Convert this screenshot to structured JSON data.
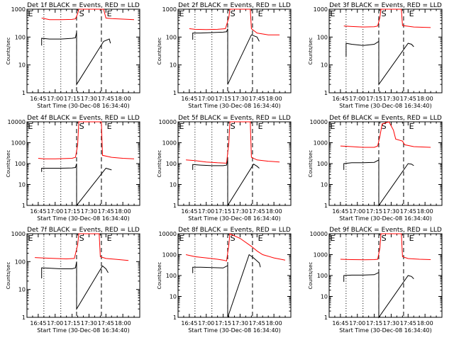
{
  "colors": {
    "events": "#000000",
    "lld": "#ff0000",
    "axes": "#000000"
  },
  "chart_data": [
    {
      "type": "line",
      "title": "Det 1f BLACK = Events, RED = LLD",
      "ylabel": "Counts/sec",
      "xlabel": "Start Time (30-Dec-08 16:34:40)",
      "scale": "log",
      "ylim": [
        1,
        1000
      ],
      "y_ticks": [
        "1",
        "10",
        "100",
        "1000"
      ],
      "x_ticks": [
        "16:45",
        "17:00",
        "17:15",
        "17:30",
        "17:45",
        "18:00"
      ],
      "markers": [
        "E",
        "S",
        "E"
      ],
      "series": [
        {
          "role": "LLD",
          "x": [
            "16:48",
            "16:55",
            "17:05",
            "17:15",
            "17:18",
            "17:20",
            "17:21",
            "17:43",
            "17:45",
            "17:50",
            "18:00",
            "18:10"
          ],
          "y": [
            480,
            420,
            420,
            430,
            450,
            700,
            1000,
            1000,
            480,
            460,
            440,
            420
          ]
        },
        {
          "role": "Events",
          "x": [
            "16:48",
            "16:48",
            "16:55",
            "17:05",
            "17:15",
            "17:18",
            "17:19",
            "17:19",
            "17:43",
            "17:48",
            "17:49"
          ],
          "y": [
            50,
            90,
            85,
            85,
            90,
            95,
            150,
            2,
            70,
            85,
            60
          ]
        }
      ]
    },
    {
      "type": "line",
      "title": "Det 2f BLACK = Events, RED = LLD",
      "ylabel": "Counts/sec",
      "xlabel": "Start Time (30-Dec-08 16:34:40)",
      "scale": "log",
      "ylim": [
        1,
        1000
      ],
      "y_ticks": [
        "1",
        "10",
        "100",
        "1000"
      ],
      "x_ticks": [
        "16:45",
        "17:00",
        "17:15",
        "17:30",
        "17:45",
        "18:00"
      ],
      "markers": [
        "E",
        "S",
        "E"
      ],
      "series": [
        {
          "role": "LLD",
          "x": [
            "16:45",
            "16:50",
            "17:00",
            "17:10",
            "17:17",
            "17:20",
            "17:21",
            "17:39",
            "17:40",
            "17:45",
            "17:55",
            "18:05"
          ],
          "y": [
            200,
            190,
            185,
            190,
            200,
            500,
            1000,
            1000,
            200,
            140,
            120,
            120
          ]
        },
        {
          "role": "Events",
          "x": [
            "16:48",
            "16:48",
            "16:55",
            "17:05",
            "17:15",
            "17:18",
            "17:19",
            "17:19",
            "17:40",
            "17:45",
            "17:47"
          ],
          "y": [
            80,
            140,
            140,
            145,
            150,
            155,
            200,
            2,
            120,
            100,
            70
          ]
        }
      ]
    },
    {
      "type": "line",
      "title": "Det 3f BLACK = Events, RED = LLD",
      "ylabel": "Counts/sec",
      "xlabel": "Start Time (30-Dec-08 16:34:40)",
      "scale": "log",
      "ylim": [
        1,
        1000
      ],
      "y_ticks": [
        "1",
        "10",
        "100",
        "1000"
      ],
      "x_ticks": [
        "16:45",
        "17:00",
        "17:15",
        "17:30",
        "17:45",
        "18:00"
      ],
      "markers": [
        "E",
        "S",
        "E"
      ],
      "series": [
        {
          "role": "LLD",
          "x": [
            "16:48",
            "16:55",
            "17:05",
            "17:15",
            "17:18",
            "17:20",
            "17:21",
            "17:39",
            "17:40",
            "17:50",
            "18:05"
          ],
          "y": [
            250,
            240,
            230,
            235,
            250,
            500,
            1000,
            1000,
            260,
            230,
            220
          ]
        },
        {
          "role": "Events",
          "x": [
            "16:50",
            "16:50",
            "16:55",
            "17:05",
            "17:15",
            "17:19",
            "17:19",
            "17:45",
            "17:48",
            "17:50"
          ],
          "y": [
            20,
            60,
            55,
            50,
            55,
            70,
            2,
            60,
            55,
            45
          ]
        }
      ]
    },
    {
      "type": "line",
      "title": "Det 4f BLACK = Events, RED = LLD",
      "ylabel": "Counts/sec",
      "xlabel": "Start Time (30-Dec-08 16:34:40)",
      "scale": "log",
      "ylim": [
        1,
        10000
      ],
      "y_ticks": [
        "1",
        "10",
        "100",
        "1000",
        "10000"
      ],
      "x_ticks": [
        "16:45",
        "17:00",
        "17:15",
        "17:30",
        "17:45",
        "18:00"
      ],
      "markers": [
        "E",
        "S",
        "E"
      ],
      "series": [
        {
          "role": "LLD",
          "x": [
            "16:45",
            "16:50",
            "17:00",
            "17:10",
            "17:15",
            "17:18",
            "17:20",
            "17:21",
            "17:41",
            "17:42",
            "17:50",
            "18:00",
            "18:10"
          ],
          "y": [
            180,
            170,
            170,
            175,
            180,
            200,
            800,
            10000,
            10000,
            250,
            200,
            180,
            170
          ]
        },
        {
          "role": "Events",
          "x": [
            "16:48",
            "16:48",
            "16:55",
            "17:05",
            "17:15",
            "17:18",
            "17:19",
            "17:19",
            "17:45",
            "17:50"
          ],
          "y": [
            40,
            60,
            60,
            60,
            62,
            65,
            100,
            1,
            60,
            50
          ]
        }
      ]
    },
    {
      "type": "line",
      "title": "Det 5f BLACK = Events, RED = LLD",
      "ylabel": "Counts/sec",
      "xlabel": "Start Time (30-Dec-08 16:34:40)",
      "scale": "log",
      "ylim": [
        1,
        10000
      ],
      "y_ticks": [
        "1",
        "10",
        "100",
        "1000",
        "10000"
      ],
      "x_ticks": [
        "16:45",
        "17:00",
        "17:15",
        "17:30",
        "17:45",
        "18:00"
      ],
      "markers": [
        "E",
        "S",
        "E"
      ],
      "series": [
        {
          "role": "LLD",
          "x": [
            "16:42",
            "16:50",
            "17:00",
            "17:10",
            "17:18",
            "17:20",
            "17:21",
            "17:39",
            "17:40",
            "17:45",
            "17:55",
            "18:05"
          ],
          "y": [
            150,
            140,
            120,
            110,
            105,
            1000,
            10000,
            10000,
            200,
            150,
            130,
            120
          ]
        },
        {
          "role": "Events",
          "x": [
            "16:48",
            "16:48",
            "16:55",
            "17:05",
            "17:15",
            "17:18",
            "17:19",
            "17:19",
            "17:42",
            "17:45",
            "17:47"
          ],
          "y": [
            50,
            90,
            85,
            80,
            80,
            85,
            150,
            1,
            95,
            75,
            60
          ]
        }
      ]
    },
    {
      "type": "line",
      "title": "Det 6f BLACK = Events, RED = LLD",
      "ylabel": "Counts/sec",
      "xlabel": "Start Time (30-Dec-08 16:34:40)",
      "scale": "log",
      "ylim": [
        1,
        10000
      ],
      "y_ticks": [
        "1",
        "10",
        "100",
        "1000",
        "10000"
      ],
      "x_ticks": [
        "16:45",
        "17:00",
        "17:15",
        "17:30",
        "17:45",
        "18:00"
      ],
      "markers": [
        "E",
        "S",
        "E"
      ],
      "series": [
        {
          "role": "LLD",
          "x": [
            "16:45",
            "16:55",
            "17:05",
            "17:15",
            "17:18",
            "17:20",
            "17:22",
            "17:28",
            "17:32",
            "17:34",
            "17:40",
            "17:42",
            "17:50",
            "18:05"
          ],
          "y": [
            700,
            650,
            600,
            600,
            700,
            2000,
            8000,
            10000,
            4000,
            1500,
            1200,
            800,
            650,
            600
          ]
        },
        {
          "role": "Events",
          "x": [
            "16:48",
            "16:48",
            "16:55",
            "17:05",
            "17:15",
            "17:19",
            "17:19",
            "17:45",
            "17:48",
            "17:50"
          ],
          "y": [
            50,
            100,
            110,
            110,
            115,
            150,
            1,
            100,
            95,
            80
          ]
        }
      ]
    },
    {
      "type": "line",
      "title": "Det 7f BLACK = Events, RED = LLD",
      "ylabel": "Counts/sec",
      "xlabel": "Start Time (30-Dec-08 16:34:40)",
      "scale": "log",
      "ylim": [
        1,
        1000
      ],
      "y_ticks": [
        "1",
        "10",
        "100",
        "1000"
      ],
      "x_ticks": [
        "16:45",
        "17:00",
        "17:15",
        "17:30",
        "17:45",
        "18:00"
      ],
      "markers": [
        "E",
        "S",
        "E"
      ],
      "series": [
        {
          "role": "LLD",
          "x": [
            "16:42",
            "16:50",
            "17:00",
            "17:10",
            "17:17",
            "17:20",
            "17:21",
            "17:39",
            "17:40",
            "17:45",
            "17:55",
            "18:05"
          ],
          "y": [
            140,
            135,
            130,
            125,
            130,
            400,
            1000,
            1000,
            150,
            130,
            120,
            110
          ]
        },
        {
          "role": "Events",
          "x": [
            "16:48",
            "16:48",
            "16:55",
            "17:05",
            "17:15",
            "17:18",
            "17:19",
            "17:19",
            "17:42",
            "17:45",
            "17:47"
          ],
          "y": [
            25,
            60,
            58,
            55,
            55,
            60,
            100,
            2,
            70,
            55,
            40
          ]
        }
      ]
    },
    {
      "type": "line",
      "title": "Det 8f BLACK = Events, RED = LLD",
      "ylabel": "Counts/sec",
      "xlabel": "Start Time (30-Dec-08 16:34:40)",
      "scale": "log",
      "ylim": [
        1,
        10000
      ],
      "y_ticks": [
        "1",
        "10",
        "100",
        "1000",
        "10000"
      ],
      "x_ticks": [
        "16:45",
        "17:00",
        "17:15",
        "17:30",
        "17:45",
        "18:00"
      ],
      "markers": [
        "E",
        "S",
        "E"
      ],
      "series": [
        {
          "role": "LLD",
          "x": [
            "16:42",
            "16:50",
            "17:00",
            "17:10",
            "17:15",
            "17:18",
            "17:20",
            "17:21",
            "17:30",
            "17:40",
            "17:45",
            "17:50",
            "18:00",
            "18:10"
          ],
          "y": [
            1000,
            800,
            700,
            600,
            550,
            500,
            3000,
            10000,
            6000,
            2500,
            1500,
            1000,
            700,
            550
          ]
        },
        {
          "role": "Events",
          "x": [
            "16:48",
            "16:48",
            "16:55",
            "17:05",
            "17:15",
            "17:19",
            "17:19",
            "17:38",
            "17:42",
            "17:45",
            "17:47",
            "17:48"
          ],
          "y": [
            130,
            250,
            250,
            240,
            230,
            300,
            1,
            1000,
            700,
            500,
            400,
            250
          ]
        }
      ]
    },
    {
      "type": "line",
      "title": "Det 9f BLACK = Events, RED = LLD",
      "ylabel": "Counts/sec",
      "xlabel": "Start Time (30-Dec-08 16:34:40)",
      "scale": "log",
      "ylim": [
        1,
        10000
      ],
      "y_ticks": [
        "1",
        "10",
        "100",
        "1000",
        "10000"
      ],
      "x_ticks": [
        "16:45",
        "17:00",
        "17:15",
        "17:30",
        "17:45",
        "18:00"
      ],
      "markers": [
        "E",
        "S",
        "E"
      ],
      "series": [
        {
          "role": "LLD",
          "x": [
            "16:45",
            "16:55",
            "17:05",
            "17:15",
            "17:18",
            "17:20",
            "17:21",
            "17:39",
            "17:40",
            "17:45",
            "17:55",
            "18:05"
          ],
          "y": [
            600,
            580,
            570,
            580,
            600,
            2000,
            10000,
            10000,
            800,
            650,
            600,
            580
          ]
        },
        {
          "role": "Events",
          "x": [
            "16:48",
            "16:48",
            "16:55",
            "17:05",
            "17:15",
            "17:19",
            "17:19",
            "17:45",
            "17:48",
            "17:50"
          ],
          "y": [
            50,
            100,
            105,
            105,
            110,
            140,
            1,
            100,
            90,
            70
          ]
        }
      ]
    }
  ]
}
